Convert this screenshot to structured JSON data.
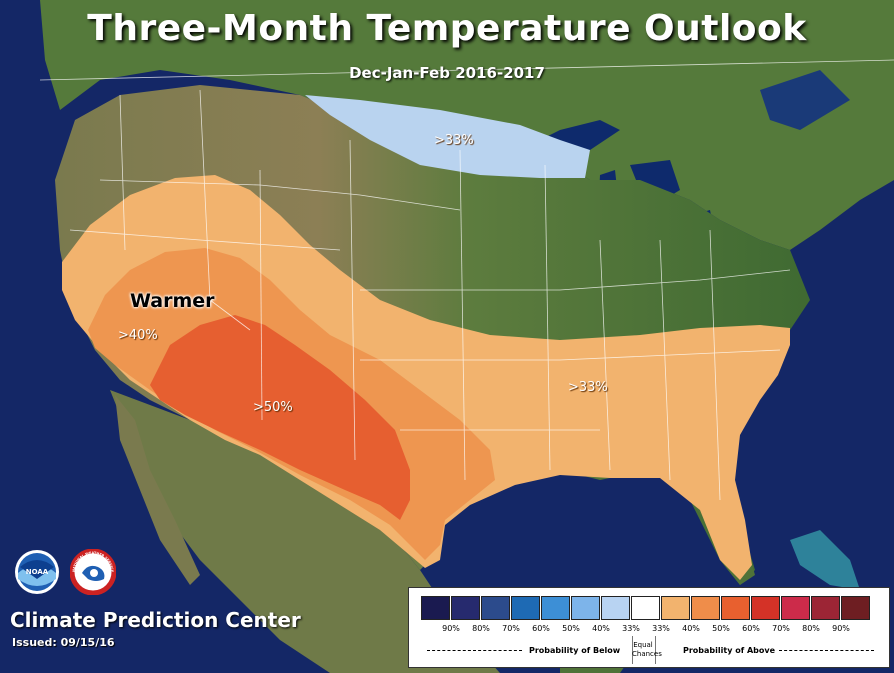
{
  "header": {
    "title": "Three-Month Temperature Outlook",
    "subtitle": "Dec-Jan-Feb 2016-2017"
  },
  "map_labels": {
    "below_north": ">33%",
    "above_40": ">40%",
    "above_50": ">50%",
    "above_33": ">33%",
    "warmer": "Warmer"
  },
  "footer": {
    "center_name": "Climate Prediction Center",
    "issued": "Issued: 09/15/16"
  },
  "logos": {
    "noaa_text": "NOAA",
    "nws_text": "NATIONAL WEATHER SERVICE"
  },
  "legend": {
    "ticks": [
      "90%",
      "80%",
      "70%",
      "60%",
      "50%",
      "40%",
      "33%",
      "33%",
      "40%",
      "50%",
      "60%",
      "70%",
      "80%",
      "90%"
    ],
    "below_label": "Probability of Below",
    "equal_chances_line1": "Equal",
    "equal_chances_line2": "Chances",
    "above_label": "Probability of Above",
    "colors": [
      "#1a1a50",
      "#262a6e",
      "#2c4b8c",
      "#1e6ab4",
      "#3d8fd6",
      "#7db4ea",
      "#b8d3f2",
      "#ffffff",
      "#f2b36e",
      "#ef8d4a",
      "#e8602f",
      "#d43227",
      "#cc2b4a",
      "#9c2535",
      "#6e1e22"
    ]
  },
  "map_colors": {
    "ocean": "#142766",
    "land": "#4f7238",
    "below_33": "#b9d3ef",
    "above_33": "#f2b36e",
    "above_40": "#ee9650",
    "above_50": "#e65f30"
  }
}
